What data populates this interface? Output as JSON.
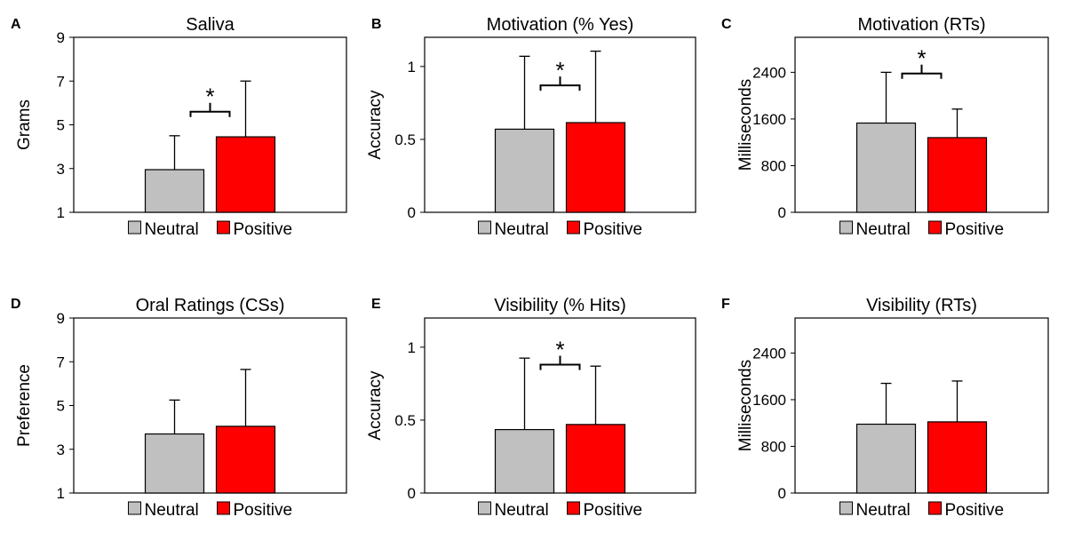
{
  "colors": {
    "neutral": "#c0c0c0",
    "positive": "#ff0000",
    "frame": "#000000"
  },
  "legend": {
    "neutral": "Neutral",
    "positive": "Positive"
  },
  "chart_data": [
    {
      "letter": "A",
      "type": "bar",
      "title": "Saliva",
      "ylabel": "Grams",
      "categories": [
        "Neutral",
        "Positive"
      ],
      "values": [
        2.95,
        4.45
      ],
      "errors": [
        1.55,
        2.55
      ],
      "ylim": [
        1,
        9
      ],
      "yticks": [
        1,
        3,
        5,
        7,
        9
      ],
      "tick_labels": [
        "1",
        "3",
        "5",
        "7",
        "9"
      ],
      "significance": {
        "label": "*",
        "y": 5.6
      }
    },
    {
      "letter": "B",
      "type": "bar",
      "title": "Motivation  (% Yes)",
      "ylabel": "Accuracy",
      "categories": [
        "Neutral",
        "Positive"
      ],
      "values": [
        0.57,
        0.615
      ],
      "errors": [
        0.5,
        0.49
      ],
      "ylim": [
        0,
        1.2
      ],
      "yticks": [
        0,
        0.5,
        1
      ],
      "tick_labels": [
        "0",
        "0.5",
        "1"
      ],
      "significance": {
        "label": "*",
        "y": 0.87
      }
    },
    {
      "letter": "C",
      "type": "bar",
      "title": "Motivation (RTs)",
      "ylabel": "Milliseconds",
      "categories": [
        "Neutral",
        "Positive"
      ],
      "values": [
        1530,
        1280
      ],
      "errors": [
        870,
        490
      ],
      "ylim": [
        0,
        3000
      ],
      "yticks": [
        0,
        800,
        1600,
        2400
      ],
      "tick_labels": [
        "0",
        "800",
        "1600",
        "2400"
      ],
      "significance": {
        "label": "*",
        "y": 2380
      }
    },
    {
      "letter": "D",
      "type": "bar",
      "title": "Oral Ratings (CSs)",
      "ylabel": "Preference",
      "categories": [
        "Neutral",
        "Positive"
      ],
      "values": [
        3.7,
        4.05
      ],
      "errors": [
        1.55,
        2.6
      ],
      "ylim": [
        1,
        9
      ],
      "yticks": [
        1,
        3,
        5,
        7,
        9
      ],
      "tick_labels": [
        "1",
        "3",
        "5",
        "7",
        "9"
      ],
      "significance": null
    },
    {
      "letter": "E",
      "type": "bar",
      "title": "Visibility (% Hits)",
      "ylabel": "Accuracy",
      "categories": [
        "Neutral",
        "Positive"
      ],
      "values": [
        0.435,
        0.47
      ],
      "errors": [
        0.49,
        0.4
      ],
      "ylim": [
        0,
        1.2
      ],
      "yticks": [
        0,
        0.5,
        1
      ],
      "tick_labels": [
        "0",
        "0.5",
        "1"
      ],
      "significance": {
        "label": "*",
        "y": 0.88
      }
    },
    {
      "letter": "F",
      "type": "bar",
      "title": "Visibility (RTs)",
      "ylabel": "Milliseconds",
      "categories": [
        "Neutral",
        "Positive"
      ],
      "values": [
        1180,
        1220
      ],
      "errors": [
        700,
        700
      ],
      "ylim": [
        0,
        3000
      ],
      "yticks": [
        0,
        800,
        1600,
        2400
      ],
      "tick_labels": [
        "0",
        "800",
        "1600",
        "2400"
      ],
      "significance": null
    }
  ]
}
